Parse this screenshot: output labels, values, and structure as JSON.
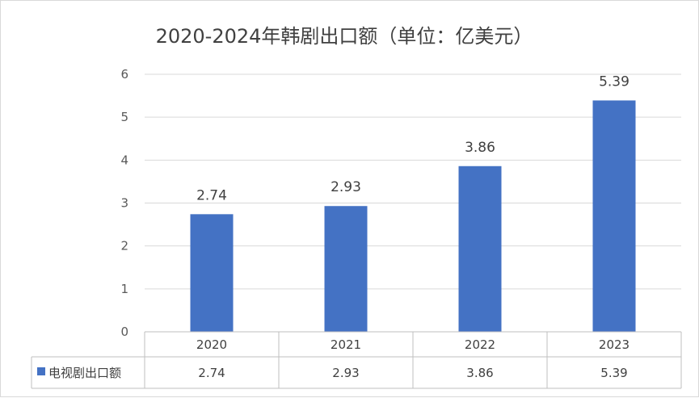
{
  "chart_data": {
    "type": "bar",
    "title": "2020-2024年韩剧出口额（单位：亿美元）",
    "categories": [
      "2020",
      "2021",
      "2022",
      "2023"
    ],
    "series": [
      {
        "name": "电视剧出口额",
        "values": [
          2.74,
          2.93,
          3.86,
          5.39
        ],
        "color": "#4472c4"
      }
    ],
    "data_labels": [
      "2.74",
      "2.93",
      "3.86",
      "5.39"
    ],
    "y_ticks": [
      "0",
      "1",
      "2",
      "3",
      "4",
      "5",
      "6"
    ],
    "ylim": [
      0,
      6
    ],
    "grid": true,
    "legend": "data-table"
  }
}
